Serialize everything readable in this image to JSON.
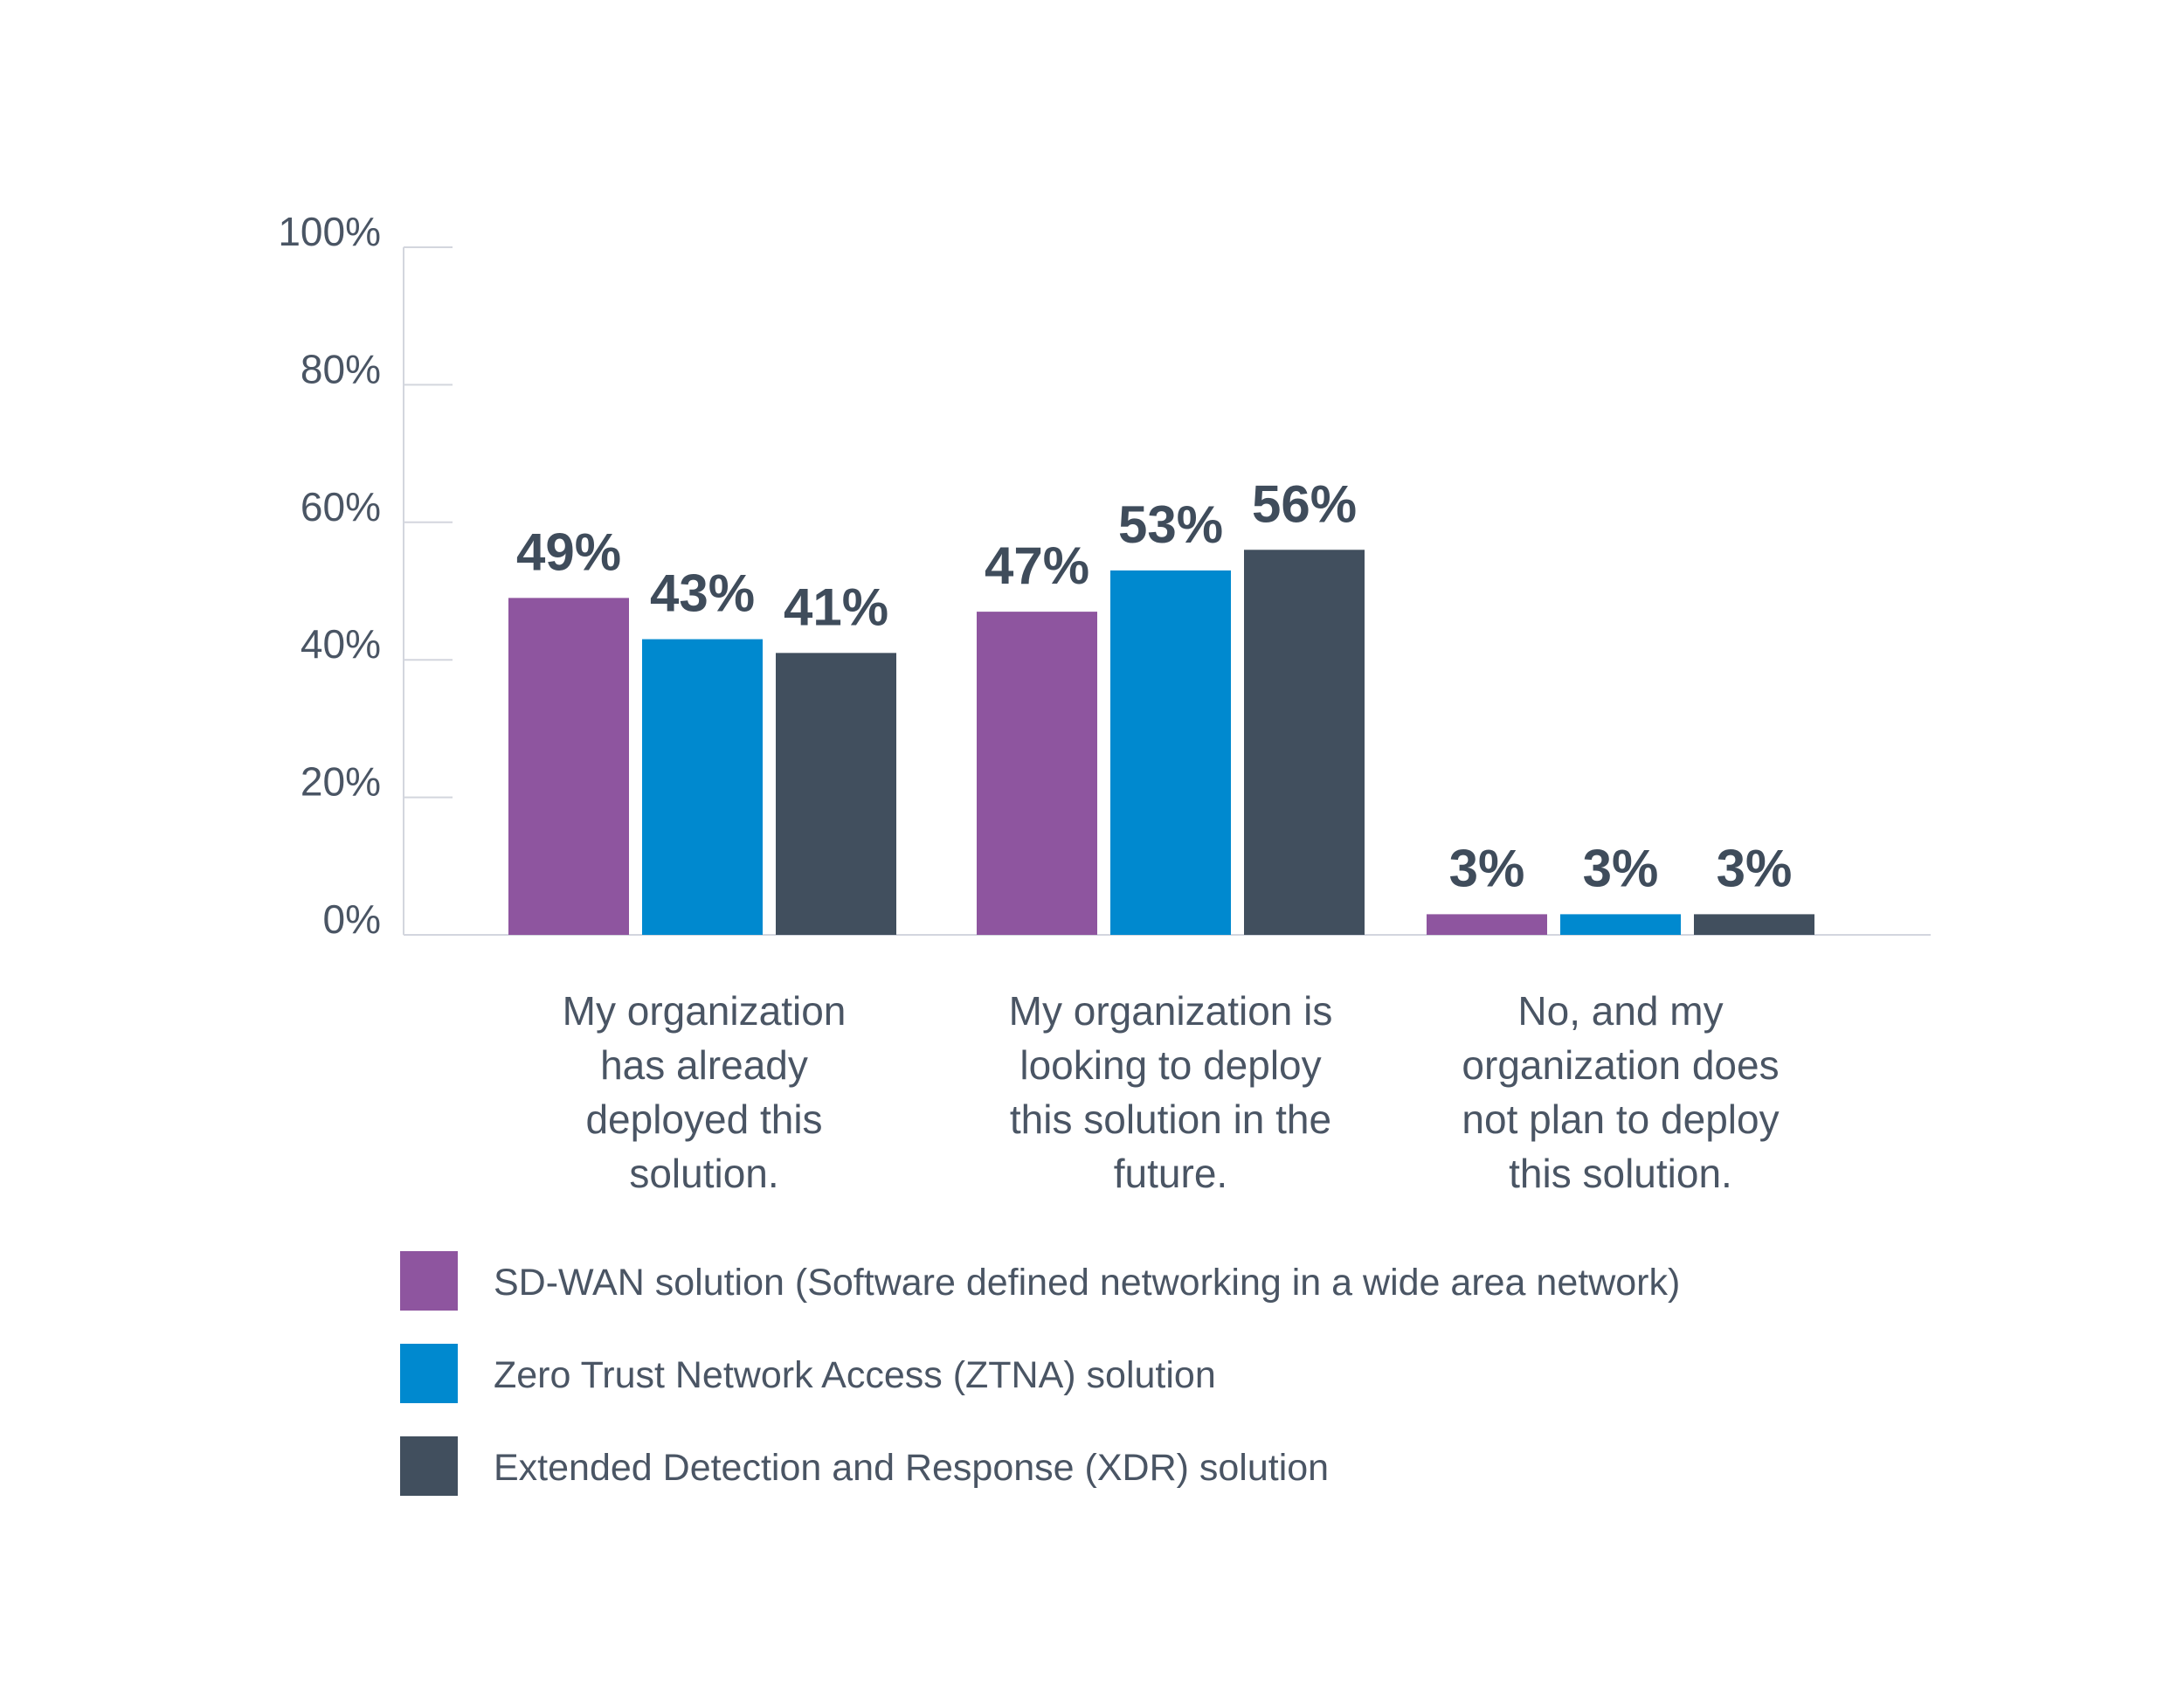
{
  "chart_data": {
    "type": "bar",
    "categories": [
      [
        "My organization",
        "has already",
        "deployed this",
        "solution."
      ],
      [
        "My organization is",
        "looking to deploy",
        "this solution in the",
        "future."
      ],
      [
        "No, and my",
        "organization does",
        "not plan to deploy",
        "this solution."
      ]
    ],
    "series": [
      {
        "name": "SD-WAN solution (Software defined networking in a wide area network)",
        "color": "#8e559f",
        "values": [
          49,
          47,
          3
        ],
        "labels": [
          "49%",
          "47%",
          "3%"
        ]
      },
      {
        "name": "Zero Trust Network Access (ZTNA) solution",
        "color": "#0089cf",
        "values": [
          43,
          53,
          3
        ],
        "labels": [
          "43%",
          "53%",
          "3%"
        ]
      },
      {
        "name": "Extended Detection and Response (XDR) solution",
        "color": "#414f5e",
        "values": [
          41,
          56,
          3
        ],
        "labels": [
          "41%",
          "56%",
          "3%"
        ]
      }
    ],
    "yticks": [
      "0%",
      "20%",
      "40%",
      "60%",
      "80%",
      "100%"
    ],
    "ylim": [
      0,
      100
    ],
    "grid": false,
    "legend_position": "bottom-left"
  }
}
